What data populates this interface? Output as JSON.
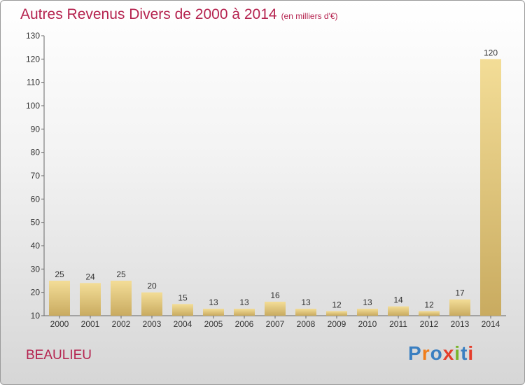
{
  "header": {
    "title": "Autres Revenus Divers de 2000 à 2014",
    "unit": "(en milliers d'€)"
  },
  "footer": {
    "location": "BEAULIEU",
    "logo": [
      "P",
      "r",
      "o",
      "x",
      "i",
      "t",
      "i"
    ],
    "logo_colors": [
      "#3a7fc1",
      "#f07d1a",
      "#3a7fc1",
      "#e53d2b",
      "#7ab42c",
      "#3a7fc1",
      "#e53d2b"
    ]
  },
  "colors": {
    "bar_light": "#f3dd97",
    "bar_dark": "#c9ab60"
  },
  "chart_data": {
    "type": "bar",
    "title": "Autres Revenus Divers de 2000 à 2014",
    "xlabel": "",
    "ylabel": "",
    "categories": [
      "2000",
      "2001",
      "2002",
      "2003",
      "2004",
      "2005",
      "2006",
      "2007",
      "2008",
      "2009",
      "2010",
      "2011",
      "2012",
      "2013",
      "2014"
    ],
    "values": [
      25,
      24,
      25,
      20,
      15,
      13,
      13,
      16,
      13,
      12,
      13,
      14,
      12,
      17,
      120
    ],
    "ylim": [
      10,
      130
    ],
    "yticks": [
      10,
      20,
      30,
      40,
      50,
      60,
      70,
      80,
      90,
      100,
      110,
      120,
      130
    ],
    "grid": false,
    "legend": "none"
  }
}
